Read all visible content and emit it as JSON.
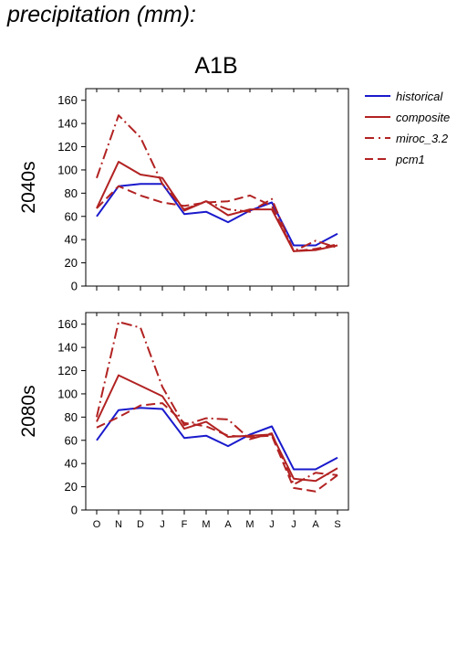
{
  "page_title": "precipitation (mm):",
  "scenario": "A1B",
  "colors": {
    "historical": "#1a1acc",
    "composite": "#b22222",
    "miroc_3.2": "#b22222",
    "pcm1": "#b22222"
  },
  "legend": [
    {
      "name": "historical",
      "style": "solid",
      "color": "#1a1acc"
    },
    {
      "name": "composite",
      "style": "solid",
      "color": "#b22222"
    },
    {
      "name": "miroc_3.2",
      "style": "dashdot",
      "color": "#b22222"
    },
    {
      "name": "pcm1",
      "style": "dashed",
      "color": "#b22222"
    }
  ],
  "chart_data": [
    {
      "type": "line",
      "ylabel": "2040s",
      "categories": [
        "O",
        "N",
        "D",
        "J",
        "F",
        "M",
        "A",
        "M",
        "J",
        "J",
        "A",
        "S"
      ],
      "ylim": [
        0,
        170
      ],
      "yticks": [
        0,
        20,
        40,
        60,
        80,
        100,
        120,
        140,
        160
      ],
      "series": [
        {
          "name": "historical",
          "style": "solid",
          "values": [
            60,
            86,
            88,
            88,
            62,
            64,
            55,
            65,
            72,
            35,
            35,
            45
          ]
        },
        {
          "name": "composite",
          "style": "solid",
          "values": [
            67,
            107,
            96,
            93,
            65,
            73,
            61,
            66,
            66,
            30,
            31,
            35
          ]
        },
        {
          "name": "miroc_3.2",
          "style": "dashdot",
          "values": [
            93,
            147,
            128,
            88,
            66,
            73,
            66,
            64,
            75,
            30,
            39,
            33
          ]
        },
        {
          "name": "pcm1",
          "style": "dashed",
          "values": [
            67,
            86,
            78,
            72,
            69,
            72,
            73,
            78,
            69,
            30,
            32,
            36
          ]
        }
      ]
    },
    {
      "type": "line",
      "ylabel": "2080s",
      "categories": [
        "O",
        "N",
        "D",
        "J",
        "F",
        "M",
        "A",
        "M",
        "J",
        "J",
        "A",
        "S"
      ],
      "ylim": [
        0,
        170
      ],
      "yticks": [
        0,
        20,
        40,
        60,
        80,
        100,
        120,
        140,
        160
      ],
      "series": [
        {
          "name": "historical",
          "style": "solid",
          "values": [
            60,
            86,
            88,
            87,
            62,
            64,
            55,
            65,
            72,
            35,
            35,
            45
          ]
        },
        {
          "name": "composite",
          "style": "solid",
          "values": [
            76,
            116,
            107,
            98,
            70,
            76,
            63,
            64,
            65,
            27,
            25,
            36
          ]
        },
        {
          "name": "miroc_3.2",
          "style": "dashdot",
          "values": [
            80,
            162,
            157,
            106,
            73,
            79,
            78,
            61,
            66,
            22,
            32,
            30
          ]
        },
        {
          "name": "pcm1",
          "style": "dashed",
          "values": [
            71,
            80,
            90,
            92,
            75,
            72,
            64,
            63,
            64,
            19,
            16,
            30
          ]
        }
      ]
    }
  ]
}
